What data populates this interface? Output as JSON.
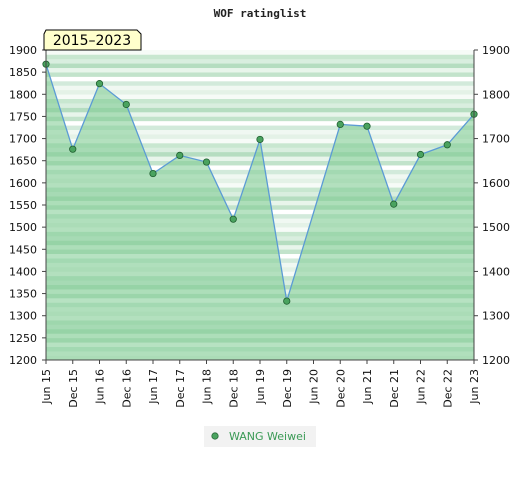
{
  "chart_data": {
    "type": "line",
    "title": "WOF ratinglist",
    "period_label": "2015–2023",
    "categories": [
      "Jun 15",
      "Dec 15",
      "Jun 16",
      "Dec 16",
      "Jun 17",
      "Dec 17",
      "Jun 18",
      "Dec 18",
      "Jun 19",
      "Dec 19",
      "Jun 20",
      "Dec 20",
      "Jun 21",
      "Dec 21",
      "Jun 22",
      "Dec 22",
      "Jun 23"
    ],
    "series": [
      {
        "name": "WANG Weiwei",
        "values": [
          1868,
          1676,
          1824,
          1777,
          1621,
          1662,
          1647,
          1518,
          1698,
          1333,
          null,
          1732,
          1728,
          1552,
          1664,
          1686,
          1755
        ]
      }
    ],
    "y_ticks": [
      1200,
      1250,
      1300,
      1350,
      1400,
      1450,
      1500,
      1550,
      1600,
      1650,
      1700,
      1750,
      1800,
      1850,
      1900
    ],
    "y2_ticks": [
      1200,
      1300,
      1400,
      1500,
      1600,
      1700,
      1800,
      1900
    ],
    "ylim": [
      1200,
      1900
    ],
    "legend_position": "bottom",
    "colors": {
      "line": "#5b9bd5",
      "marker": "#4aa35f",
      "area": "#7ccb8f",
      "band_light": "#e6f4e9",
      "band_dark": "#b5e0c0",
      "badge_bg": "#ffffcc"
    }
  }
}
